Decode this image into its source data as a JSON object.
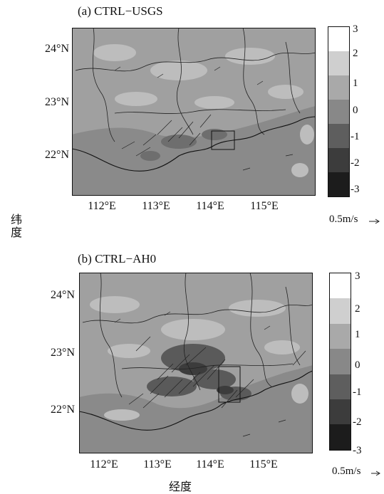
{
  "panels": [
    {
      "id": "a",
      "title": "(a) CTRL−USGS",
      "lat_labels": [
        "24°N",
        "23°N",
        "22°N"
      ],
      "lon_labels": [
        "112°E",
        "113°E",
        "114°E",
        "115°E"
      ],
      "colorbar_ticks": [
        "3",
        "2",
        "1",
        "0",
        "-1",
        "-2",
        "-3"
      ],
      "reference_vector": "0.5m/s"
    },
    {
      "id": "b",
      "title": "(b) CTRL−AH0",
      "lat_labels": [
        "24°N",
        "23°N",
        "22°N"
      ],
      "lon_labels": [
        "112°E",
        "113°E",
        "114°E",
        "115°E"
      ],
      "colorbar_ticks": [
        "3",
        "2",
        "1",
        "0",
        "-1",
        "-2",
        "-3"
      ],
      "reference_vector": "0.5m/s"
    }
  ],
  "y_axis_label": "纬度",
  "x_axis_label": "经度",
  "colorbar_colors": [
    "#ffffff",
    "#cfcfcf",
    "#a9a9a9",
    "#888888",
    "#5e5e5e",
    "#3c3c3c",
    "#1c1c1c"
  ],
  "base_map_color": "#a0a0a0",
  "sea_color": "#888888"
}
